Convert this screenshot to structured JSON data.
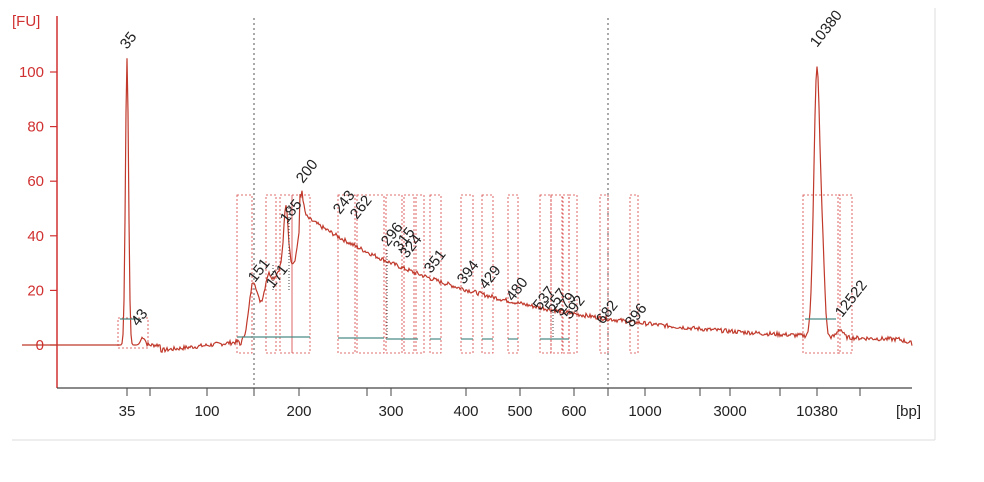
{
  "chart_data": {
    "type": "line",
    "y_unit_label": "[FU]",
    "x_unit_label": "[bp]",
    "y_ticks": [
      0,
      20,
      40,
      60,
      80,
      100
    ],
    "ylim": [
      -15,
      118
    ],
    "x_tick_labels": [
      "35",
      "100",
      "200",
      "300",
      "400",
      "500",
      "600",
      "1000",
      "3000",
      "10380"
    ],
    "x_scale": "electropherogram (nonlinear bp scale)",
    "grid": false,
    "colors": {
      "trace": "#c0392b",
      "axis": "#d03030",
      "marker_lower": "#2e7d32",
      "marker_upper": "#9b30d9",
      "baseline": "#4a8a84",
      "region_box": "#d84040",
      "region_dots": "#444444"
    },
    "markers": [
      {
        "label": "35",
        "role": "lower marker",
        "fu": 105
      },
      {
        "label": "10380",
        "role": "upper marker",
        "fu": 107
      }
    ],
    "peaks": [
      {
        "bp": "43",
        "fu": 4
      },
      {
        "bp": "151",
        "fu": 21
      },
      {
        "bp": "171",
        "fu": 18
      },
      {
        "bp": "185",
        "fu": 42
      },
      {
        "bp": "200",
        "fu": 58
      },
      {
        "bp": "243",
        "fu": 47
      },
      {
        "bp": "262",
        "fu": 44
      },
      {
        "bp": "296",
        "fu": 34
      },
      {
        "bp": "315",
        "fu": 30
      },
      {
        "bp": "324",
        "fu": 28
      },
      {
        "bp": "351",
        "fu": 25
      },
      {
        "bp": "394",
        "fu": 19
      },
      {
        "bp": "429",
        "fu": 17
      },
      {
        "bp": "480",
        "fu": 13
      },
      {
        "bp": "537",
        "fu": 11
      },
      {
        "bp": "557",
        "fu": 11
      },
      {
        "bp": "579",
        "fu": 9
      },
      {
        "bp": "592",
        "fu": 9
      },
      {
        "bp": "682",
        "fu": 5
      },
      {
        "bp": "896",
        "fu": 4
      },
      {
        "bp": "12522",
        "fu": 6
      }
    ]
  }
}
